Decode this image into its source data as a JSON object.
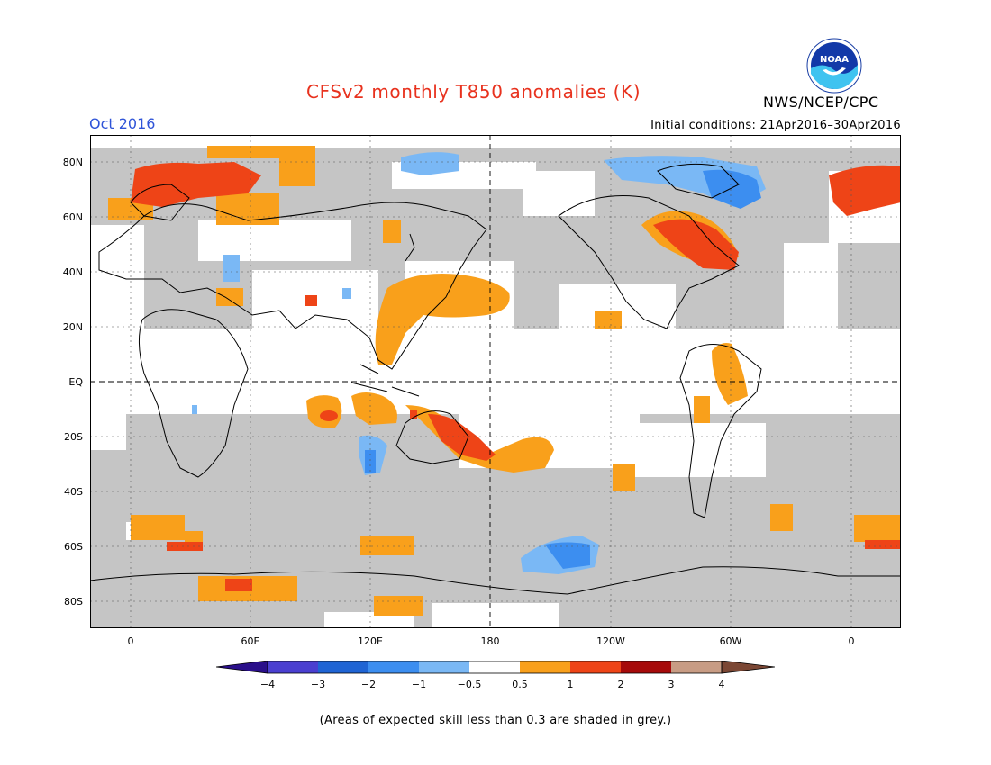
{
  "title": "CFSv2 monthly T850 anomalies (K)",
  "month": "Oct 2016",
  "initial_conditions": "Initial conditions: 21Apr2016–30Apr2016",
  "agency": "NWS/NCEP/CPC",
  "logo_text": "NOAA",
  "lat_labels": [
    "80N",
    "60N",
    "40N",
    "20N",
    "EQ",
    "20S",
    "40S",
    "60S",
    "80S"
  ],
  "lon_labels": [
    "0",
    "60E",
    "120E",
    "180",
    "120W",
    "60W",
    "0"
  ],
  "colorbar": {
    "labels": [
      "−4",
      "−3",
      "−2",
      "−1",
      "−0.5",
      "0.5",
      "1",
      "2",
      "3",
      "4"
    ],
    "colors": [
      "#2a0f8a",
      "#4a3fd0",
      "#1f64d4",
      "#3c8ef0",
      "#7ab8f5",
      "#ffffff",
      "#f9a01b",
      "#ee4417",
      "#a60a0a",
      "#c89c84",
      "#7b4734"
    ]
  },
  "footnote": "(Areas of expected skill less than 0.3 are shaded in grey.)",
  "legend_colors": {
    "grey": "#c5c5c5",
    "orange": "#f9a01b",
    "red": "#ee4417",
    "lightblue": "#7ab8f5",
    "blue": "#3c8ef0"
  }
}
